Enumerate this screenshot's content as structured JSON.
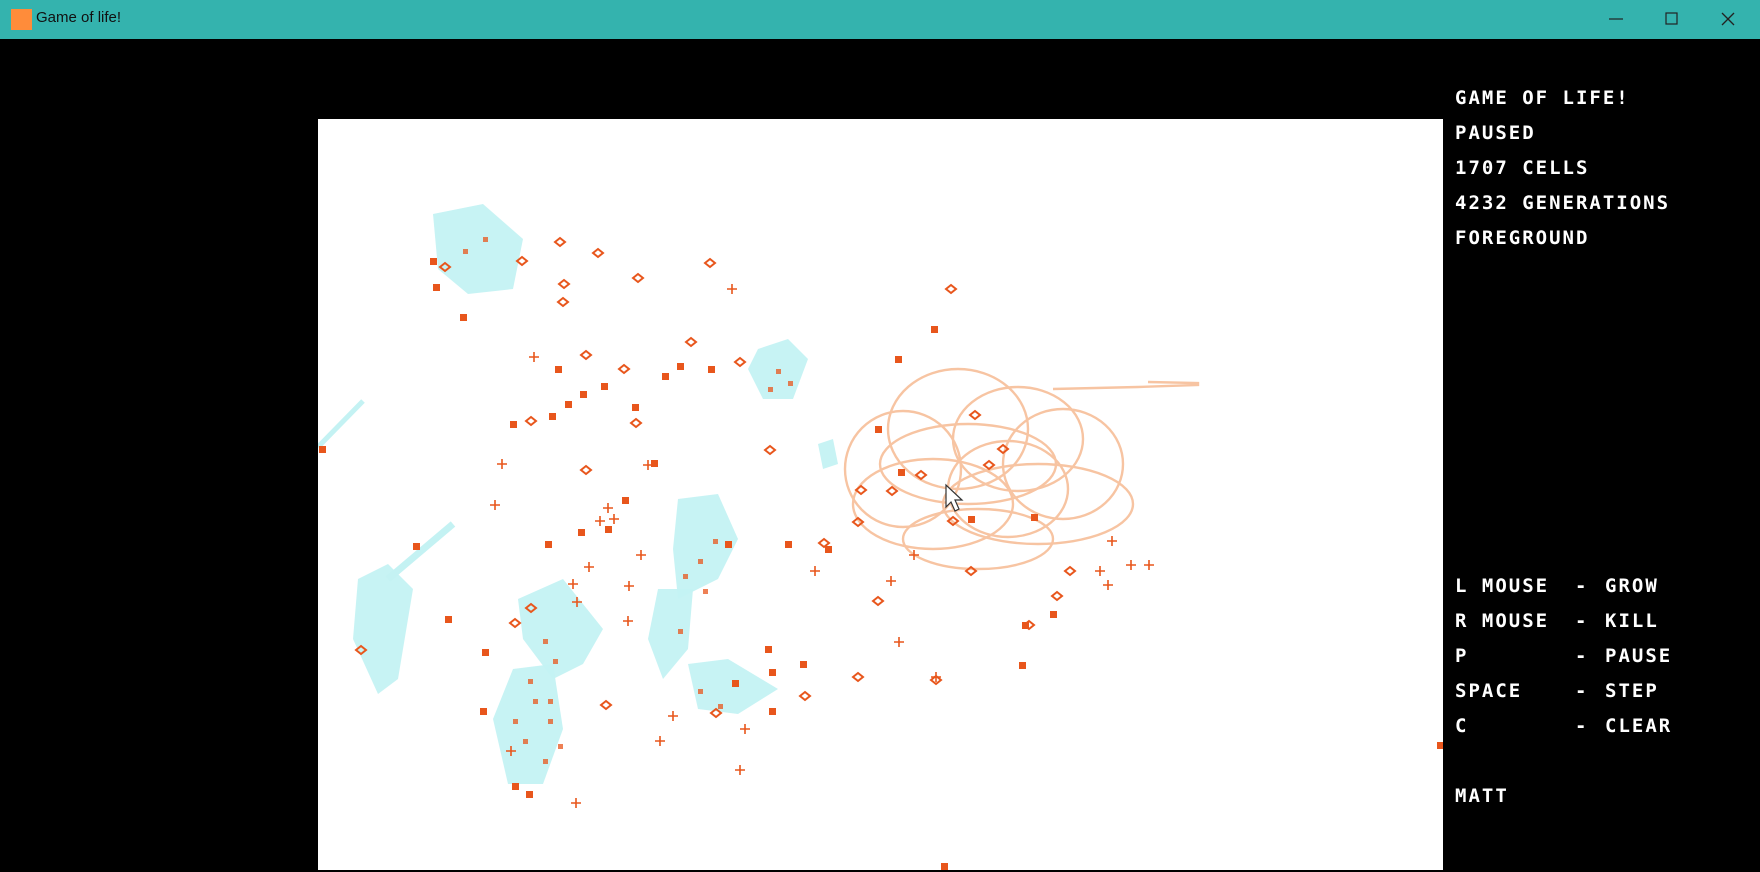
{
  "window": {
    "title": "Game of life!",
    "icon": "app-icon-orange-square",
    "controls": [
      "minimize-icon",
      "maximize-icon",
      "close-icon"
    ]
  },
  "hud": {
    "title": "GAME OF LIFE!",
    "state": "PAUSED",
    "cells": "1707 CELLS",
    "generations": "4232 GENERATIONS",
    "layer": "FOREGROUND",
    "controls": [
      {
        "key": "L MOUSE",
        "action": "GROW"
      },
      {
        "key": "R MOUSE",
        "action": "KILL"
      },
      {
        "key": "P",
        "action": "PAUSE"
      },
      {
        "key": "SPACE",
        "action": "STEP"
      },
      {
        "key": "C",
        "action": "CLEAR"
      }
    ],
    "author": "MATT"
  },
  "colors": {
    "titlebar": "#34b3ae",
    "board": "#ffffff",
    "cell": "#e8561c",
    "trail": "#f7c4a2",
    "ghost": "#c4f2f3",
    "background": "#000000"
  }
}
